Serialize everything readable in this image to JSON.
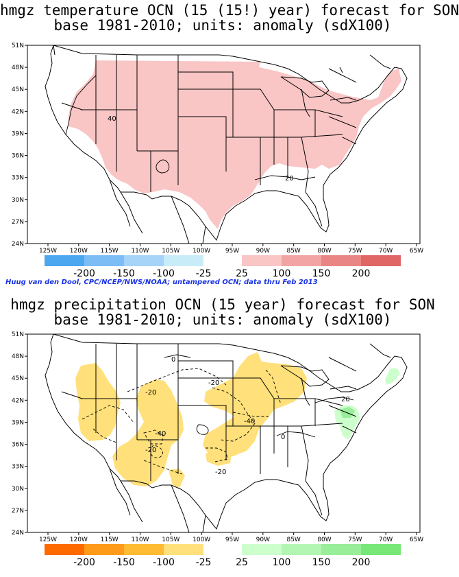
{
  "maps": [
    {
      "title_line1": "hmgz temperature OCN (15 (15!) year) forecast for SON",
      "title_line2": "base 1981-2010; units: anomaly (sdX100)",
      "lat_labels": [
        "51N",
        "48N",
        "45N",
        "42N",
        "39N",
        "36N",
        "33N",
        "30N",
        "27N",
        "24N"
      ],
      "lon_labels": [
        "125W",
        "120W",
        "115W",
        "110W",
        "105W",
        "100W",
        "95W",
        "90W",
        "85W",
        "80W",
        "75W",
        "70W",
        "65W"
      ],
      "contour_labels": [
        "40",
        "20"
      ],
      "legend_negative": {
        "colors": [
          "#4da6f0",
          "#7dbdf5",
          "#a6d3f8",
          "#c9ecf9"
        ],
        "labels": [
          "-200",
          "-150",
          "-100",
          "-25"
        ]
      },
      "legend_positive": {
        "colors": [
          "#f9c5c5",
          "#f2a4a4",
          "#e98585",
          "#e06565"
        ],
        "labels": [
          "25",
          "100",
          "150",
          "200"
        ]
      }
    },
    {
      "title_line1": "hmgz precipitation OCN (15 year) forecast for SON",
      "title_line2": "base 1981-2010; units: anomaly (sdX100)",
      "lat_labels": [
        "51N",
        "48N",
        "45N",
        "42N",
        "39N",
        "36N",
        "33N",
        "30N",
        "27N",
        "24N"
      ],
      "lon_labels": [
        "125W",
        "120W",
        "115W",
        "110W",
        "105W",
        "100W",
        "95W",
        "90W",
        "85W",
        "80W",
        "75W",
        "70W",
        "65W"
      ],
      "contour_labels": [
        "0",
        "-20",
        "-20",
        "-40",
        "-40",
        "-20",
        "-20",
        "0",
        "20"
      ],
      "legend_negative": {
        "colors": [
          "#ff6a00",
          "#ff9a1a",
          "#ffbb33",
          "#ffe07a"
        ],
        "labels": [
          "-200",
          "-150",
          "-100",
          "-25"
        ]
      },
      "legend_positive": {
        "colors": [
          "#ccffcc",
          "#b3f5b3",
          "#99ee99",
          "#77e877"
        ],
        "labels": [
          "25",
          "100",
          "150",
          "200"
        ]
      }
    }
  ],
  "credit": "Huug van den Dool, CPC/NCEP/NWS/NOAA; untampered OCN; data thru Feb 2013"
}
